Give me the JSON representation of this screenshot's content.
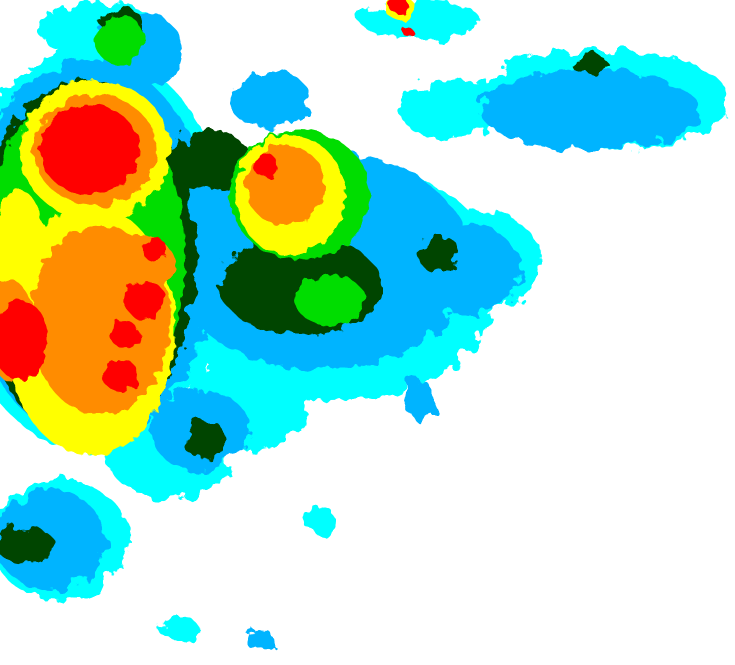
{
  "map": {
    "type": "precipitation-radar-intensity",
    "background": "#ffffff",
    "palette": {
      "very_light": "#00ffff",
      "light": "#00b4ff",
      "moderate": "#004400",
      "moderate_heavy": "#00dd00",
      "heavy": "#ffff00",
      "very_heavy": "#ff8c00",
      "extreme": "#ff0000"
    }
  }
}
